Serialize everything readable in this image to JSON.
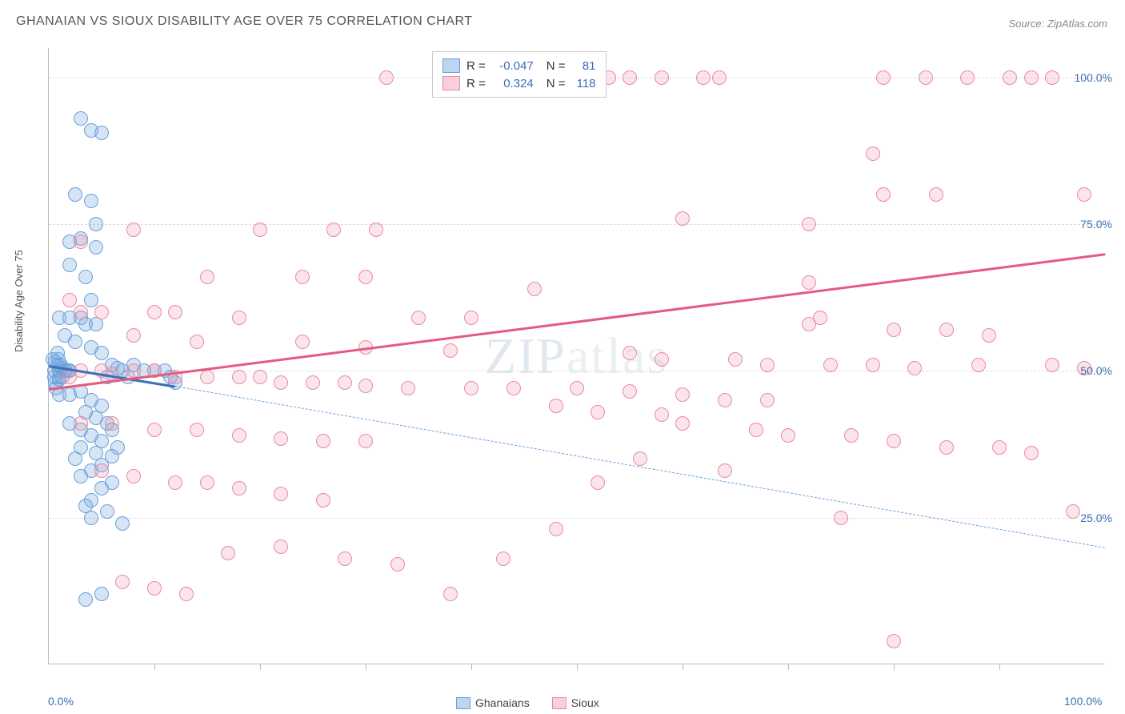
{
  "title": "GHANAIAN VS SIOUX DISABILITY AGE OVER 75 CORRELATION CHART",
  "source": "Source: ZipAtlas.com",
  "ylabel": "Disability Age Over 75",
  "watermark": "ZIPatlas",
  "chart": {
    "type": "scatter",
    "xlim": [
      0,
      100
    ],
    "ylim": [
      0,
      105
    ],
    "background_color": "#ffffff",
    "grid_color": "#dddddd",
    "border_color": "#bbbbbb",
    "y_gridlines": [
      25,
      50,
      75,
      100
    ],
    "y_tick_labels": [
      "25.0%",
      "50.0%",
      "75.0%",
      "100.0%"
    ],
    "x_ticks_minor": [
      10,
      20,
      30,
      40,
      50,
      60,
      70,
      80,
      90
    ],
    "x_tick_labels": {
      "0": "0.0%",
      "100": "100.0%"
    },
    "tick_label_color": "#3b6fb6",
    "point_radius": 9,
    "point_stroke_width": 1.3
  },
  "series": [
    {
      "name": "Ghanaians",
      "fill_color": "rgba(120,170,225,0.30)",
      "stroke_color": "#6aa0d8",
      "swatch_fill": "#bcd5f0",
      "swatch_border": "#6aa0d8",
      "R": "-0.047",
      "N": "81",
      "trend": {
        "x1": 0,
        "y1": 51,
        "x2": 12,
        "y2": 47.5,
        "color": "#3b6fb6",
        "dashed": false,
        "width": 2.5
      },
      "trend_ext": {
        "x1": 12,
        "y1": 47.5,
        "x2": 100,
        "y2": 20,
        "color": "#6aa0d8",
        "dashed": true,
        "width": 1.8
      },
      "points": [
        [
          0.5,
          50
        ],
        [
          1,
          50
        ],
        [
          1,
          49
        ],
        [
          0.8,
          51
        ],
        [
          0.6,
          48
        ],
        [
          1.2,
          50.5
        ],
        [
          1.5,
          50
        ],
        [
          0.7,
          47
        ],
        [
          0.4,
          52
        ],
        [
          1.1,
          51
        ],
        [
          1,
          48.5
        ],
        [
          0.9,
          52
        ],
        [
          0.5,
          49
        ],
        [
          1.3,
          49
        ],
        [
          1.6,
          50
        ],
        [
          0.6,
          51.5
        ],
        [
          1.8,
          50
        ],
        [
          1,
          46
        ],
        [
          0.8,
          53
        ],
        [
          2,
          50
        ],
        [
          3,
          93
        ],
        [
          4,
          91
        ],
        [
          5,
          90.5
        ],
        [
          2.5,
          80
        ],
        [
          4,
          79
        ],
        [
          4.5,
          75
        ],
        [
          2,
          72
        ],
        [
          3,
          72.5
        ],
        [
          4.5,
          71
        ],
        [
          2,
          68
        ],
        [
          3.5,
          66
        ],
        [
          4,
          62
        ],
        [
          1,
          59
        ],
        [
          2,
          59
        ],
        [
          3,
          59
        ],
        [
          3.5,
          58
        ],
        [
          4.5,
          58
        ],
        [
          1.5,
          56
        ],
        [
          2.5,
          55
        ],
        [
          4,
          54
        ],
        [
          5,
          53
        ],
        [
          6,
          51
        ],
        [
          7,
          50
        ],
        [
          8,
          51
        ],
        [
          5.5,
          49
        ],
        [
          6.5,
          50.5
        ],
        [
          7.5,
          49
        ],
        [
          9,
          50
        ],
        [
          10,
          50
        ],
        [
          11,
          50
        ],
        [
          11.5,
          49
        ],
        [
          12,
          48
        ],
        [
          2,
          46
        ],
        [
          3,
          46.5
        ],
        [
          4,
          45
        ],
        [
          5,
          44
        ],
        [
          3.5,
          43
        ],
        [
          4.5,
          42
        ],
        [
          2,
          41
        ],
        [
          5.5,
          41
        ],
        [
          6,
          40
        ],
        [
          3,
          40
        ],
        [
          4,
          39
        ],
        [
          5,
          38
        ],
        [
          6.5,
          37
        ],
        [
          3,
          37
        ],
        [
          4.5,
          36
        ],
        [
          6,
          35.5
        ],
        [
          2.5,
          35
        ],
        [
          5,
          34
        ],
        [
          4,
          33
        ],
        [
          3,
          32
        ],
        [
          6,
          31
        ],
        [
          5,
          30
        ],
        [
          4,
          28
        ],
        [
          3.5,
          27
        ],
        [
          5.5,
          26
        ],
        [
          4,
          25
        ],
        [
          7,
          24
        ],
        [
          5,
          12
        ],
        [
          3.5,
          11
        ]
      ]
    },
    {
      "name": "Sioux",
      "fill_color": "rgba(240,150,175,0.26)",
      "stroke_color": "#e98aa2",
      "swatch_fill": "#f7d0dc",
      "swatch_border": "#e98aa2",
      "R": "0.324",
      "N": "118",
      "trend": {
        "x1": 0,
        "y1": 47,
        "x2": 100,
        "y2": 70,
        "color": "#e55a7f",
        "dashed": false,
        "width": 2.5
      },
      "points": [
        [
          32,
          100
        ],
        [
          53,
          100
        ],
        [
          55,
          100
        ],
        [
          58,
          100
        ],
        [
          62,
          100
        ],
        [
          63.5,
          100
        ],
        [
          79,
          100
        ],
        [
          83,
          100
        ],
        [
          87,
          100
        ],
        [
          91,
          100
        ],
        [
          93,
          100
        ],
        [
          95,
          100
        ],
        [
          78,
          87
        ],
        [
          79,
          80
        ],
        [
          84,
          80
        ],
        [
          98,
          80
        ],
        [
          60,
          76
        ],
        [
          72,
          75
        ],
        [
          8,
          74
        ],
        [
          20,
          74
        ],
        [
          27,
          74
        ],
        [
          31,
          74
        ],
        [
          3,
          72
        ],
        [
          15,
          66
        ],
        [
          24,
          66
        ],
        [
          30,
          66
        ],
        [
          46,
          64
        ],
        [
          2,
          62
        ],
        [
          3,
          60
        ],
        [
          5,
          60
        ],
        [
          10,
          60
        ],
        [
          12,
          60
        ],
        [
          18,
          59
        ],
        [
          35,
          59
        ],
        [
          40,
          59
        ],
        [
          72,
          58
        ],
        [
          73,
          59
        ],
        [
          80,
          57
        ],
        [
          85,
          57
        ],
        [
          89,
          56
        ],
        [
          8,
          56
        ],
        [
          14,
          55
        ],
        [
          24,
          55
        ],
        [
          30,
          54
        ],
        [
          38,
          53.5
        ],
        [
          55,
          53
        ],
        [
          58,
          52
        ],
        [
          65,
          52
        ],
        [
          68,
          51
        ],
        [
          74,
          51
        ],
        [
          78,
          51
        ],
        [
          82,
          50.5
        ],
        [
          88,
          51
        ],
        [
          95,
          51
        ],
        [
          98,
          50.5
        ],
        [
          2,
          49
        ],
        [
          3,
          50
        ],
        [
          5,
          50
        ],
        [
          6,
          49.5
        ],
        [
          8,
          50
        ],
        [
          10,
          50
        ],
        [
          12,
          49
        ],
        [
          15,
          49
        ],
        [
          18,
          49
        ],
        [
          20,
          49
        ],
        [
          22,
          48
        ],
        [
          25,
          48
        ],
        [
          28,
          48
        ],
        [
          30,
          47.5
        ],
        [
          34,
          47
        ],
        [
          40,
          47
        ],
        [
          44,
          47
        ],
        [
          50,
          47
        ],
        [
          55,
          46.5
        ],
        [
          60,
          46
        ],
        [
          64,
          45
        ],
        [
          48,
          44
        ],
        [
          52,
          43
        ],
        [
          58,
          42.5
        ],
        [
          3,
          41
        ],
        [
          6,
          41
        ],
        [
          10,
          40
        ],
        [
          14,
          40
        ],
        [
          18,
          39
        ],
        [
          22,
          38.5
        ],
        [
          26,
          38
        ],
        [
          30,
          38
        ],
        [
          67,
          40
        ],
        [
          70,
          39
        ],
        [
          76,
          39
        ],
        [
          80,
          38
        ],
        [
          85,
          37
        ],
        [
          90,
          37
        ],
        [
          93,
          36
        ],
        [
          5,
          33
        ],
        [
          8,
          32
        ],
        [
          12,
          31
        ],
        [
          15,
          31
        ],
        [
          18,
          30
        ],
        [
          22,
          29
        ],
        [
          26,
          28
        ],
        [
          97,
          26
        ],
        [
          75,
          25
        ],
        [
          17,
          19
        ],
        [
          22,
          20
        ],
        [
          28,
          18
        ],
        [
          33,
          17
        ],
        [
          7,
          14
        ],
        [
          10,
          13
        ],
        [
          13,
          12
        ],
        [
          80,
          4
        ],
        [
          38,
          12
        ],
        [
          43,
          18
        ],
        [
          48,
          23
        ],
        [
          52,
          31
        ],
        [
          56,
          35
        ],
        [
          60,
          41
        ],
        [
          64,
          33
        ],
        [
          68,
          45
        ],
        [
          72,
          65
        ]
      ]
    }
  ],
  "legend_bottom": [
    {
      "label": "Ghanaians",
      "fill": "#bcd5f0",
      "border": "#6aa0d8"
    },
    {
      "label": "Sioux",
      "fill": "#f7d0dc",
      "border": "#e98aa2"
    }
  ]
}
